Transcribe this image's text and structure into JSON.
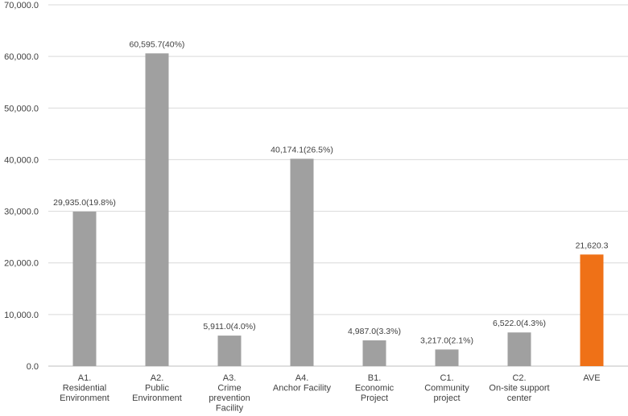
{
  "chart_data": {
    "type": "bar",
    "title": "",
    "xlabel": "",
    "ylabel": "",
    "ylim": [
      0,
      70000
    ],
    "yticks": [
      0,
      10000,
      20000,
      30000,
      40000,
      50000,
      60000,
      70000
    ],
    "ytick_labels": [
      "0.0",
      "10,000.0",
      "20,000.0",
      "30,000.0",
      "40,000.0",
      "50,000.0",
      "60,000.0",
      "70,000.0"
    ],
    "grid": true,
    "categories": [
      [
        "A1.",
        "Residential",
        "Environment"
      ],
      [
        "A2.",
        "Public",
        "Environment"
      ],
      [
        "A3.",
        "Crime",
        "prevention",
        "Facility"
      ],
      [
        "A4.",
        "Anchor Facility"
      ],
      [
        "B1.",
        "Economic",
        "Project"
      ],
      [
        "C1.",
        "Community",
        "project"
      ],
      [
        "C2.",
        "On-site support",
        "center"
      ],
      [
        "AVE"
      ]
    ],
    "values": [
      29935.0,
      60595.7,
      5911.0,
      40174.1,
      4987.0,
      3217.0,
      6522.0,
      21620.3
    ],
    "data_labels": [
      "29,935.0(19.8%)",
      "60,595.7(40%)",
      "5,911.0(4.0%)",
      "40,174.1(26.5%)",
      "4,987.0(3.3%)",
      "3,217.0(2.1%)",
      "6,522.0(4.3%)",
      "21,620.3"
    ],
    "colors": [
      "#a0a0a0",
      "#a0a0a0",
      "#a0a0a0",
      "#a0a0a0",
      "#a0a0a0",
      "#a0a0a0",
      "#a0a0a0",
      "#ef7117"
    ]
  }
}
